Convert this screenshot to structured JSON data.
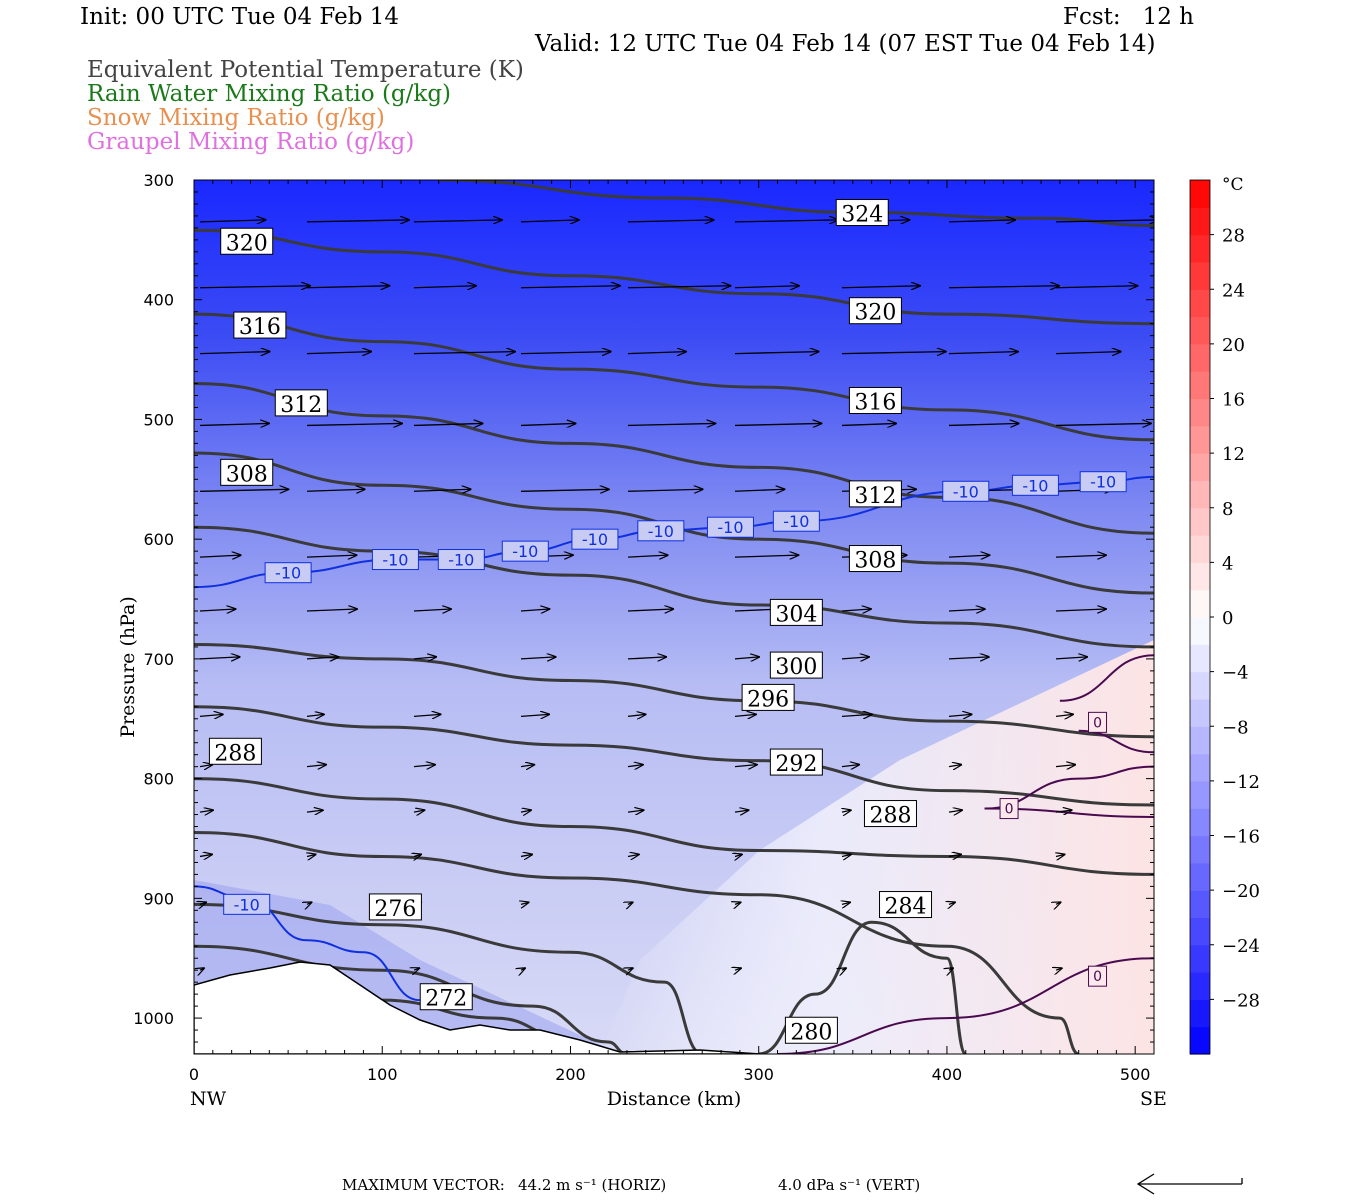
{
  "header": {
    "init": "Init: 00 UTC Tue 04 Feb 14",
    "fcst": "Fcst:   12 h",
    "valid": "Valid: 12 UTC Tue 04 Feb 14 (07 EST Tue 04 Feb 14)"
  },
  "fields": [
    {
      "label": "Equivalent Potential Temperature (K)",
      "color": "#444444"
    },
    {
      "label": "Rain Water Mixing Ratio (g/kg)",
      "color": "#1a7a1a"
    },
    {
      "label": "Snow Mixing Ratio (g/kg)",
      "color": "#e89050"
    },
    {
      "label": "Graupel Mixing Ratio (g/kg)",
      "color": "#e070e0"
    }
  ],
  "footer": {
    "max_vector_label": "MAXIMUM VECTOR:",
    "horiz": "44.2 m s⁻¹ (HORIZ)",
    "vert": "4.0 dPa s⁻¹ (VERT)"
  },
  "chart_data": {
    "type": "cross-section",
    "xlabel": "Distance (km)",
    "ylabel": "Pressure (hPa)",
    "x_end_labels": {
      "left": "NW",
      "right": "SE"
    },
    "xlim": [
      0,
      510
    ],
    "ylim": [
      1030,
      300
    ],
    "x_ticks": [
      0,
      100,
      200,
      300,
      400,
      500
    ],
    "y_ticks": [
      300,
      400,
      500,
      600,
      700,
      800,
      900,
      1000
    ],
    "colorbar": {
      "unit": "°C",
      "ticks": [
        28,
        24,
        20,
        16,
        12,
        8,
        4,
        0,
        -4,
        -8,
        -12,
        -16,
        -20,
        -24,
        -28
      ],
      "range": [
        -32,
        32
      ],
      "colors": {
        "cold": "#0000ff",
        "zero": "#ffffff",
        "warm": "#ff0000"
      }
    },
    "theta_e_contours": [
      {
        "label": "324",
        "points": [
          [
            130,
            300
          ],
          [
            250,
            315
          ],
          [
            350,
            327
          ],
          [
            450,
            332
          ],
          [
            510,
            338
          ]
        ],
        "label_at": [
          355,
          328
        ]
      },
      {
        "label": "320",
        "points": [
          [
            0,
            342
          ],
          [
            100,
            360
          ],
          [
            200,
            380
          ],
          [
            300,
            395
          ],
          [
            400,
            412
          ],
          [
            510,
            420
          ]
        ],
        "label_at": [
          28,
          352
        ]
      },
      {
        "label": "320",
        "points": [],
        "label_at": [
          362,
          410
        ]
      },
      {
        "label": "316",
        "points": [
          [
            0,
            412
          ],
          [
            100,
            435
          ],
          [
            200,
            458
          ],
          [
            300,
            473
          ],
          [
            400,
            492
          ],
          [
            510,
            517
          ]
        ],
        "label_at": [
          35,
          422
        ]
      },
      {
        "label": "316",
        "points": [],
        "label_at": [
          362,
          485
        ]
      },
      {
        "label": "312",
        "points": [
          [
            0,
            470
          ],
          [
            100,
            497
          ],
          [
            200,
            520
          ],
          [
            300,
            540
          ],
          [
            400,
            565
          ],
          [
            510,
            595
          ]
        ],
        "label_at": [
          57,
          487
        ]
      },
      {
        "label": "312",
        "points": [],
        "label_at": [
          362,
          563
        ]
      },
      {
        "label": "308",
        "points": [
          [
            0,
            528
          ],
          [
            100,
            555
          ],
          [
            200,
            575
          ],
          [
            300,
            600
          ],
          [
            400,
            620
          ],
          [
            510,
            645
          ]
        ],
        "label_at": [
          28,
          545
        ]
      },
      {
        "label": "308",
        "points": [],
        "label_at": [
          362,
          617
        ]
      },
      {
        "label": "304",
        "points": [
          [
            0,
            590
          ],
          [
            100,
            610
          ],
          [
            200,
            630
          ],
          [
            300,
            655
          ],
          [
            400,
            670
          ],
          [
            510,
            690
          ]
        ],
        "label_at": [
          320,
          662
        ]
      },
      {
        "label": "300",
        "points": [
          [
            0,
            688
          ],
          [
            100,
            700
          ],
          [
            200,
            718
          ],
          [
            300,
            735
          ],
          [
            400,
            752
          ],
          [
            510,
            765
          ]
        ],
        "label_at": [
          320,
          706
        ]
      },
      {
        "label": "296",
        "points": [
          [
            0,
            740
          ],
          [
            100,
            757
          ],
          [
            200,
            772
          ],
          [
            300,
            785
          ],
          [
            400,
            810
          ],
          [
            510,
            822
          ]
        ],
        "label_at": [
          305,
          733
        ]
      },
      {
        "label": "292",
        "points": [
          [
            0,
            800
          ],
          [
            100,
            817
          ],
          [
            200,
            840
          ],
          [
            300,
            860
          ],
          [
            400,
            865
          ],
          [
            510,
            880
          ]
        ],
        "label_at": [
          320,
          787
        ]
      },
      {
        "label": "288",
        "points": [
          [
            0,
            845
          ],
          [
            100,
            865
          ],
          [
            200,
            883
          ],
          [
            300,
            897
          ],
          [
            400,
            940
          ],
          [
            460,
            1000
          ],
          [
            470,
            1030
          ]
        ],
        "label_at": [
          22,
          778
        ]
      },
      {
        "label": "288",
        "points": [],
        "label_at": [
          370,
          830
        ]
      },
      {
        "label": "284",
        "points": [
          [
            0,
            905
          ],
          [
            100,
            922
          ],
          [
            200,
            945
          ],
          [
            250,
            970
          ],
          [
            270,
            1030
          ]
        ],
        "label_at": [
          378,
          906
        ]
      },
      {
        "label": "280",
        "points": [
          [
            300,
            1030
          ],
          [
            330,
            980
          ],
          [
            360,
            920
          ],
          [
            400,
            950
          ],
          [
            410,
            1030
          ]
        ],
        "label_at": [
          328,
          1011
        ]
      },
      {
        "label": "276",
        "points": [
          [
            0,
            940
          ],
          [
            100,
            960
          ],
          [
            180,
            990
          ],
          [
            220,
            1020
          ],
          [
            230,
            1030
          ]
        ],
        "label_at": [
          107,
          908
        ]
      },
      {
        "label": "272",
        "points": [
          [
            100,
            985
          ],
          [
            160,
            1000
          ],
          [
            200,
            1018
          ]
        ],
        "label_at": [
          134,
          983
        ]
      }
    ],
    "isotherm_minus10_labels": [
      [
        -10,
        "-10",
        50,
        628
      ],
      [
        -10,
        "-10",
        107,
        617
      ],
      [
        -10,
        "-10",
        142,
        617
      ],
      [
        -10,
        "-10",
        176,
        610
      ],
      [
        -10,
        "-10",
        213,
        600
      ],
      [
        -10,
        "-10",
        248,
        593
      ],
      [
        -10,
        "-10",
        285,
        590
      ],
      [
        -10,
        "-10",
        320,
        585
      ],
      [
        -10,
        "-10",
        410,
        560
      ],
      [
        -10,
        "-10",
        447,
        555
      ],
      [
        -10,
        "-10",
        483,
        552
      ],
      [
        -10,
        "-10",
        28,
        905
      ]
    ],
    "isotherm_0_labels": [
      [
        "0",
        480,
        753
      ],
      [
        "0",
        433,
        825
      ],
      [
        "0",
        480,
        965
      ]
    ]
  }
}
